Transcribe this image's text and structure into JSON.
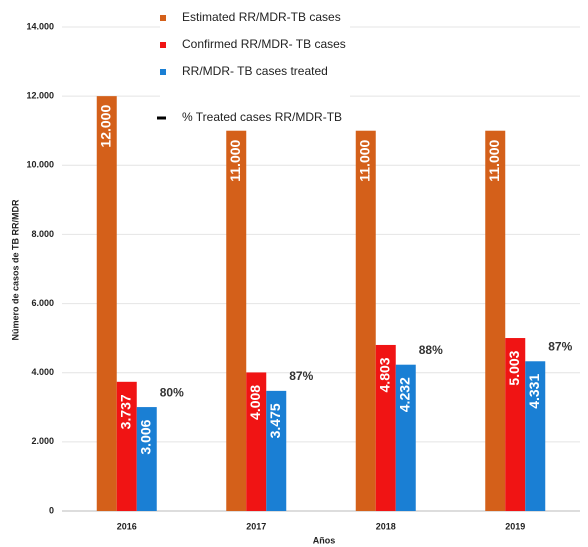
{
  "chart_data": {
    "type": "bar",
    "y_label": "Número de casos de TB RR/MDR",
    "x_label": "Años",
    "categories": [
      "2016",
      "2017",
      "2018",
      "2019"
    ],
    "series": [
      {
        "name": "Estimated RR/MDR-TB cases",
        "color": "#d4601a",
        "values": [
          12000,
          11000,
          11000,
          11000
        ],
        "value_labels": [
          "12.000",
          "11.000",
          "11.000",
          "11.000"
        ]
      },
      {
        "name": "Confirmed RR/MDR- TB cases",
        "color": "#f01414",
        "values": [
          3737,
          4008,
          4803,
          5003
        ],
        "value_labels": [
          "3.737",
          "4.008",
          "4.803",
          "5.003"
        ]
      },
      {
        "name": "RR/MDR- TB cases treated",
        "color": "#1a7fd4",
        "values": [
          3006,
          3475,
          4232,
          4331
        ],
        "value_labels": [
          "3.006",
          "3.475",
          "4.232",
          "4.331"
        ]
      },
      {
        "name": "% Treated cases RR/MDR-TB",
        "color": "#000000",
        "values": [
          80,
          87,
          88,
          87
        ],
        "value_labels": [
          "80%",
          "87%",
          "88%",
          "87%"
        ]
      }
    ],
    "ylim": [
      0,
      14000
    ],
    "yticks": [
      0,
      {
        "value": 2000,
        "label": "2.000"
      },
      {
        "value": 4000,
        "label": "4.000"
      },
      {
        "value": 6000,
        "label": "6.000"
      },
      {
        "value": 8000,
        "label": "8.000"
      },
      {
        "value": 10000,
        "label": "10.000"
      },
      {
        "value": 12000,
        "label": "12.000"
      },
      {
        "value": 14000,
        "label": "14.000"
      }
    ],
    "grid": true,
    "legend": "top"
  }
}
